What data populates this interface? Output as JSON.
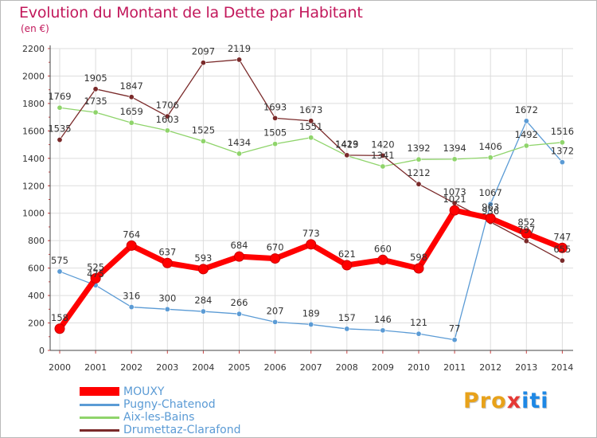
{
  "header": {
    "title": "Evolution du Montant de la Dette par Habitant",
    "unit": "(en €)"
  },
  "logo": {
    "text": "Proxiti",
    "letter_colors": [
      "#e8a21a",
      "#e8a21a",
      "#e8a21a",
      "#e53935",
      "#1e88e5",
      "#1e88e5",
      "#1e88e5"
    ]
  },
  "chart_data": {
    "type": "line",
    "title": "Evolution du Montant de la Dette par Habitant",
    "ylabel": "(en €)",
    "xlabel": "",
    "x": [
      "2000",
      "2001",
      "2002",
      "2003",
      "2004",
      "2005",
      "2006",
      "2007",
      "2008",
      "2009",
      "2010",
      "2011",
      "2012",
      "2013",
      "2014"
    ],
    "ylim": [
      0,
      2200
    ],
    "yticks": [
      0,
      200,
      400,
      600,
      800,
      1000,
      1200,
      1400,
      1600,
      1800,
      2000,
      2200
    ],
    "grid": true,
    "legend": "bottom-left",
    "series": [
      {
        "name": "MOUXY",
        "color": "#ff0000",
        "emphasis": true,
        "values": [
          158,
          525,
          764,
          637,
          593,
          684,
          670,
          773,
          621,
          660,
          598,
          1021,
          963,
          852,
          747
        ]
      },
      {
        "name": "Pugny-Chatenod",
        "color": "#5b9bd5",
        "values": [
          575,
          475,
          316,
          300,
          284,
          266,
          207,
          189,
          157,
          146,
          121,
          77,
          1067,
          1672,
          1372
        ]
      },
      {
        "name": "Aix-les-Bains",
        "color": "#8fd46b",
        "values": [
          1769,
          1735,
          1659,
          1603,
          1525,
          1434,
          1505,
          1551,
          1419,
          1341,
          1392,
          1394,
          1406,
          1492,
          1516
        ]
      },
      {
        "name": "Drumettaz-Clarafond",
        "color": "#7a2a2a",
        "values": [
          1535,
          1905,
          1847,
          1706,
          2097,
          2119,
          1693,
          1673,
          1423,
          1420,
          1212,
          1073,
          936,
          797,
          655
        ]
      }
    ]
  }
}
